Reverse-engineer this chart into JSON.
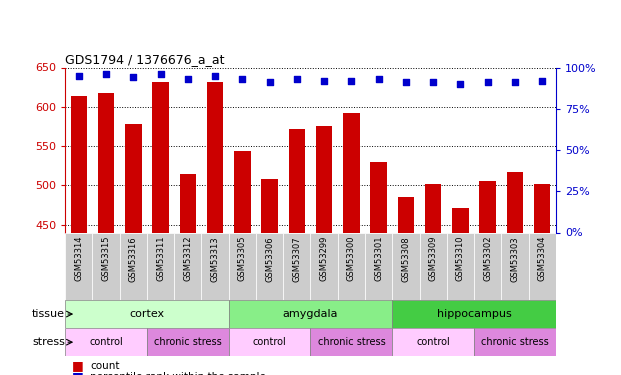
{
  "title": "GDS1794 / 1376676_a_at",
  "samples": [
    "GSM53314",
    "GSM53315",
    "GSM53316",
    "GSM53311",
    "GSM53312",
    "GSM53313",
    "GSM53305",
    "GSM53306",
    "GSM53307",
    "GSM53299",
    "GSM53300",
    "GSM53301",
    "GSM53308",
    "GSM53309",
    "GSM53310",
    "GSM53302",
    "GSM53303",
    "GSM53304"
  ],
  "counts": [
    614,
    618,
    578,
    632,
    515,
    632,
    544,
    508,
    572,
    575,
    592,
    530,
    485,
    502,
    471,
    505,
    517,
    502
  ],
  "percentiles": [
    95,
    96,
    94,
    96,
    93,
    95,
    93,
    91,
    93,
    92,
    92,
    93,
    91,
    91,
    90,
    91,
    91,
    92
  ],
  "ylim_left": [
    440,
    650
  ],
  "ylim_right": [
    0,
    100
  ],
  "yticks_left": [
    450,
    500,
    550,
    600,
    650
  ],
  "yticks_right": [
    0,
    25,
    50,
    75,
    100
  ],
  "bar_color": "#cc0000",
  "dot_color": "#0000cc",
  "tissue_groups": [
    {
      "label": "cortex",
      "start": 0,
      "end": 6,
      "color": "#ccffcc"
    },
    {
      "label": "amygdala",
      "start": 6,
      "end": 12,
      "color": "#88ee88"
    },
    {
      "label": "hippocampus",
      "start": 12,
      "end": 18,
      "color": "#44cc44"
    }
  ],
  "stress_groups": [
    {
      "label": "control",
      "start": 0,
      "end": 3,
      "color": "#ffccff"
    },
    {
      "label": "chronic stress",
      "start": 3,
      "end": 6,
      "color": "#dd88dd"
    },
    {
      "label": "control",
      "start": 6,
      "end": 9,
      "color": "#ffccff"
    },
    {
      "label": "chronic stress",
      "start": 9,
      "end": 12,
      "color": "#dd88dd"
    },
    {
      "label": "control",
      "start": 12,
      "end": 15,
      "color": "#ffccff"
    },
    {
      "label": "chronic stress",
      "start": 15,
      "end": 18,
      "color": "#dd88dd"
    }
  ],
  "left_axis_color": "#cc0000",
  "right_axis_color": "#0000cc",
  "sample_bg_color": "#cccccc",
  "grid_color": "black"
}
